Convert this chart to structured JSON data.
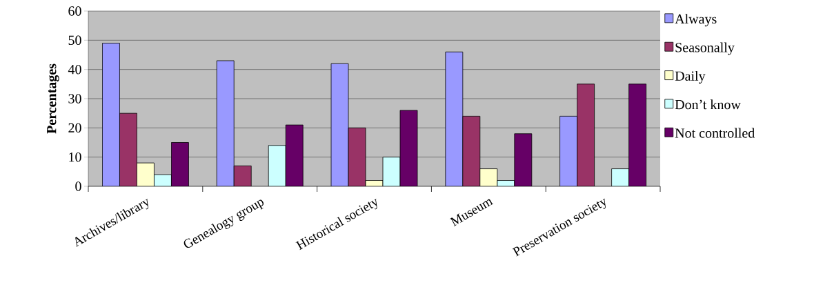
{
  "chart_data": {
    "type": "bar",
    "ylabel": "Percentages",
    "categories": [
      "Archives/library",
      "Genealogy group",
      "Historical society",
      "Museum",
      "Preservation society"
    ],
    "series": [
      {
        "name": "Always",
        "color": "#9999ff",
        "values": [
          49,
          43,
          42,
          46,
          24
        ]
      },
      {
        "name": "Seasonally",
        "color": "#993366",
        "values": [
          25,
          7,
          20,
          24,
          35
        ]
      },
      {
        "name": "Daily",
        "color": "#ffffcc",
        "values": [
          8,
          null,
          2,
          6,
          null
        ]
      },
      {
        "name": "Don’t know",
        "color": "#ccffff",
        "values": [
          4,
          14,
          10,
          2,
          6
        ]
      },
      {
        "name": "Not controlled",
        "color": "#660066",
        "values": [
          15,
          21,
          26,
          18,
          35
        ]
      }
    ],
    "ylim": [
      0,
      60
    ],
    "yticks": [
      0,
      10,
      20,
      30,
      40,
      50,
      60
    ],
    "grid": "y",
    "legend": "right"
  }
}
